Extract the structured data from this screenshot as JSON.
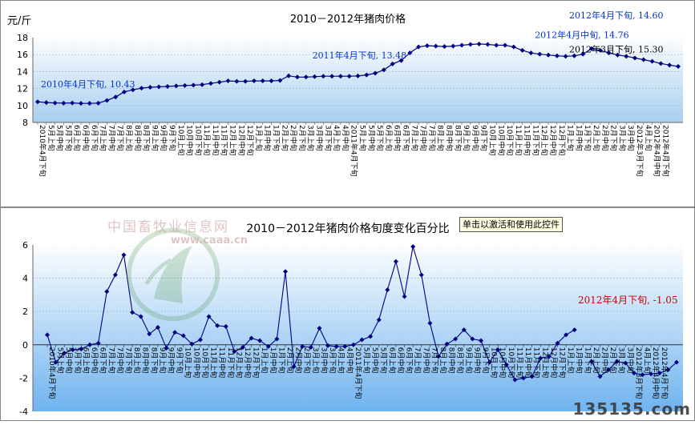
{
  "chart_data": [
    {
      "type": "line",
      "title": "2010－2012年猪肉价格",
      "ylabel": "元/斤",
      "ylim": [
        8,
        18
      ],
      "yticks": [
        8,
        10,
        12,
        14,
        16,
        18
      ],
      "grid": true,
      "tick_label_set": [
        "下旬",
        "5月上旬",
        "5月中旬",
        "5月下旬",
        "6月上旬",
        "6月中旬",
        "6月下旬",
        "7月上旬",
        "7月中旬",
        "7月下旬",
        "8月上旬",
        "8月中旬",
        "8月下旬",
        "9月上旬",
        "9月中旬",
        "9月下旬",
        "10月上旬",
        "10月中旬",
        "10月下旬",
        "11月上旬",
        "11月中旬",
        "11月下旬",
        "12月上旬",
        "12月中旬",
        "12月下旬",
        "1月上旬",
        "1月中旬",
        "1月下旬",
        "2月上旬",
        "2月中旬",
        "2月下旬",
        "3月上旬",
        "3月中旬",
        "3月下旬",
        "4月上旬",
        "4月中旬",
        "4月下旬",
        "2010年4月下旬",
        "2011年4月下旬",
        "2012年3月下旬",
        "2012年4月中旬",
        "2012年4月下旬"
      ],
      "values": [
        10.43,
        10.35,
        10.3,
        10.28,
        10.3,
        10.25,
        10.25,
        10.28,
        10.6,
        11.0,
        11.6,
        11.85,
        12.05,
        12.15,
        12.2,
        12.25,
        12.3,
        12.35,
        12.4,
        12.45,
        12.6,
        12.75,
        12.9,
        12.85,
        12.85,
        12.9,
        12.9,
        12.9,
        12.95,
        13.5,
        13.35,
        13.35,
        13.4,
        13.45,
        13.45,
        13.45,
        13.45,
        13.48,
        13.6,
        13.8,
        14.2,
        14.9,
        15.3,
        16.2,
        16.9,
        17.05,
        17.0,
        16.95,
        17.0,
        17.1,
        17.2,
        17.25,
        17.2,
        17.1,
        17.1,
        16.9,
        16.5,
        16.2,
        16.05,
        15.95,
        15.85,
        15.8,
        15.85,
        16.05,
        16.7,
        16.5,
        16.2,
        15.95,
        15.8,
        15.6,
        15.4,
        15.2,
        14.95,
        14.76,
        14.6
      ],
      "annotations": [
        {
          "text": "2010年4月下旬, 10.43",
          "color": "#0033cc"
        },
        {
          "text": "2011年4月下旬, 13.48",
          "color": "#0033cc"
        },
        {
          "text": "2012年3月下旬, 15.30",
          "color": "#000000"
        },
        {
          "text": "2012年4月中旬, 14.76",
          "color": "#0033cc"
        },
        {
          "text": "2012年4月下旬, 14.60",
          "color": "#0033cc"
        }
      ],
      "series_color": "#000080"
    },
    {
      "type": "line",
      "title": "2010－2012年猪肉价格旬度变化百分比",
      "ylim": [
        -4,
        6
      ],
      "yticks": [
        -4,
        -2,
        0,
        2,
        4,
        6
      ],
      "grid": true,
      "values": [
        0.6,
        -1.05,
        -0.5,
        -0.3,
        -0.25,
        0.0,
        0.1,
        3.2,
        4.2,
        5.4,
        1.95,
        1.7,
        0.65,
        1.05,
        -0.2,
        0.75,
        0.55,
        0.05,
        0.3,
        1.7,
        1.15,
        1.1,
        -0.4,
        -0.15,
        0.4,
        0.25,
        -0.1,
        0.35,
        4.4,
        -1.3,
        -0.1,
        -0.15,
        1.0,
        -0.05,
        -0.1,
        -0.1,
        0.0,
        0.3,
        0.5,
        1.5,
        3.3,
        5.0,
        2.9,
        5.9,
        4.2,
        1.3,
        -0.7,
        0.05,
        0.35,
        0.9,
        0.35,
        0.25,
        -1.05,
        -0.3,
        -1.2,
        -2.1,
        -2.0,
        -1.9,
        -0.8,
        -0.7,
        0.1,
        0.6,
        0.9,
        null,
        -1.0,
        -1.9,
        -1.5,
        -1.0,
        -1.1,
        -1.7,
        -1.8,
        -1.75,
        -1.7,
        -1.5,
        -1.05
      ],
      "annotations": [
        {
          "text": "2012年4月下旬, -1.05",
          "color": "#cc0000"
        }
      ],
      "series_color": "#000080"
    }
  ],
  "watermark": {
    "cn": "中国畜牧业信息网",
    "url": "www.caaa.cn"
  },
  "activate_button": "单击以激活和使用此控件",
  "site_logo": "135135.com"
}
